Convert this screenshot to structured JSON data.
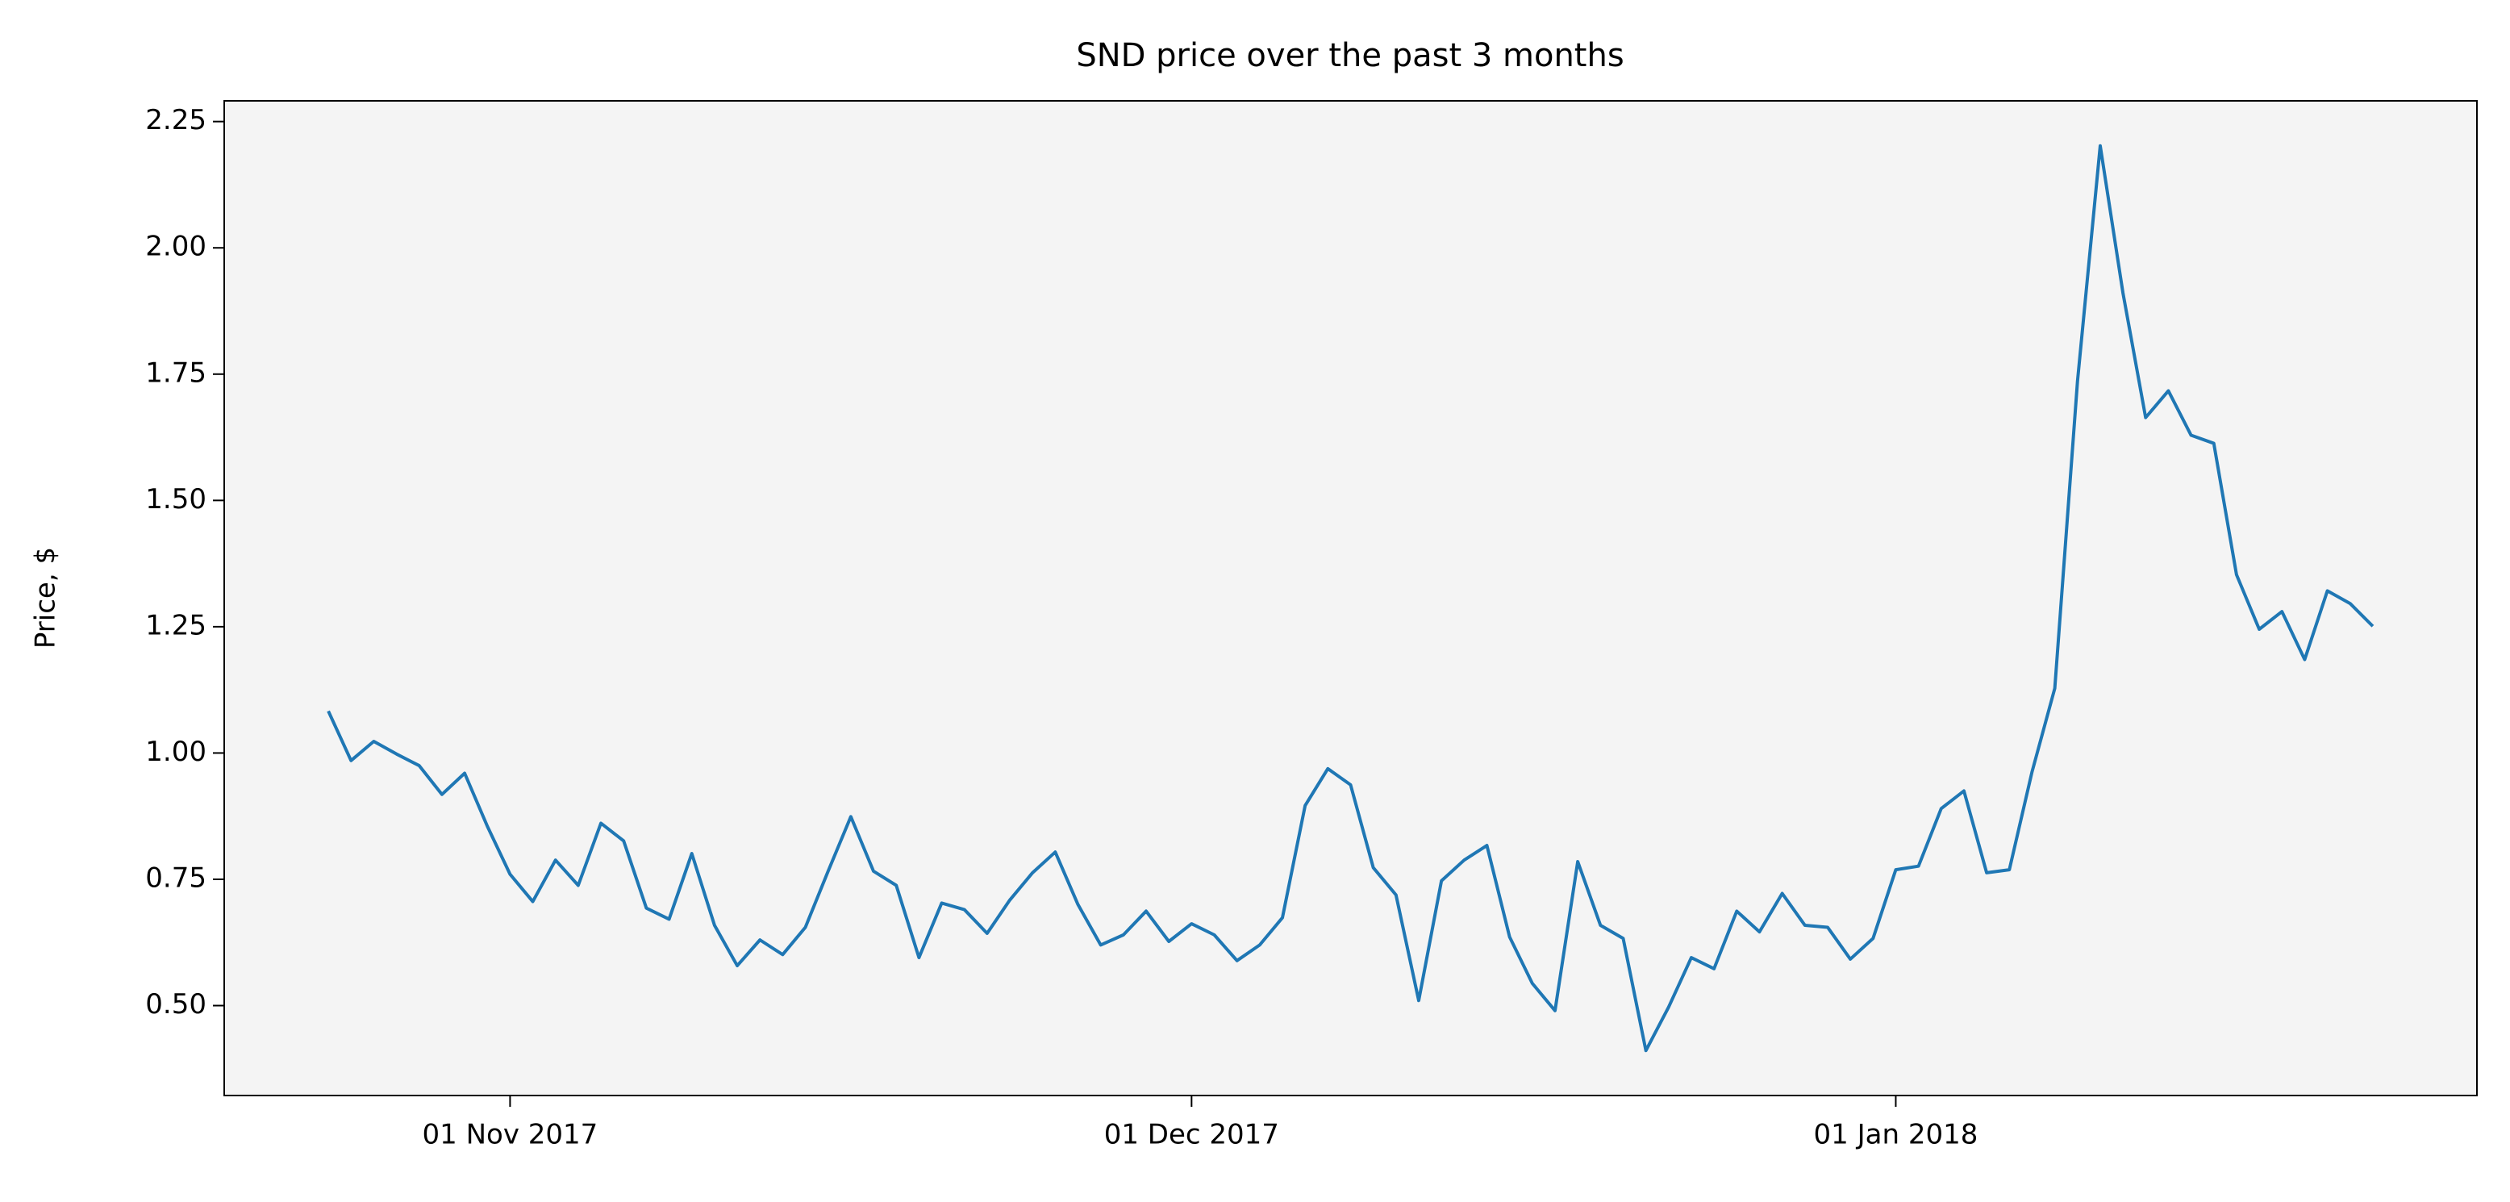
{
  "chart_data": {
    "type": "line",
    "title": "SND price over the past 3 months",
    "ylabel": "Price, $",
    "color": "#1f77b4",
    "background": "#f4f4f4",
    "x": [
      "2017-10-24",
      "2017-10-25",
      "2017-10-26",
      "2017-10-27",
      "2017-10-28",
      "2017-10-29",
      "2017-10-30",
      "2017-10-31",
      "2017-11-01",
      "2017-11-02",
      "2017-11-03",
      "2017-11-04",
      "2017-11-05",
      "2017-11-06",
      "2017-11-07",
      "2017-11-08",
      "2017-11-09",
      "2017-11-10",
      "2017-11-11",
      "2017-11-12",
      "2017-11-13",
      "2017-11-14",
      "2017-11-15",
      "2017-11-16",
      "2017-11-17",
      "2017-11-18",
      "2017-11-19",
      "2017-11-20",
      "2017-11-21",
      "2017-11-22",
      "2017-11-23",
      "2017-11-24",
      "2017-11-25",
      "2017-11-26",
      "2017-11-27",
      "2017-11-28",
      "2017-11-29",
      "2017-11-30",
      "2017-12-01",
      "2017-12-02",
      "2017-12-03",
      "2017-12-04",
      "2017-12-05",
      "2017-12-06",
      "2017-12-07",
      "2017-12-08",
      "2017-12-09",
      "2017-12-10",
      "2017-12-11",
      "2017-12-12",
      "2017-12-13",
      "2017-12-14",
      "2017-12-15",
      "2017-12-16",
      "2017-12-17",
      "2017-12-18",
      "2017-12-19",
      "2017-12-20",
      "2017-12-21",
      "2017-12-22",
      "2017-12-23",
      "2017-12-24",
      "2017-12-25",
      "2017-12-26",
      "2017-12-27",
      "2017-12-28",
      "2017-12-29",
      "2017-12-30",
      "2017-12-31",
      "2018-01-01",
      "2018-01-02",
      "2018-01-03",
      "2018-01-04",
      "2018-01-05",
      "2018-01-06",
      "2018-01-07",
      "2018-01-08",
      "2018-01-09",
      "2018-01-10",
      "2018-01-11",
      "2018-01-12",
      "2018-01-13",
      "2018-01-14",
      "2018-01-15",
      "2018-01-16",
      "2018-01-17",
      "2018-01-18",
      "2018-01-19",
      "2018-01-20",
      "2018-01-21",
      "2018-01-22"
    ],
    "values": [
      1.083,
      0.985,
      1.023,
      0.998,
      0.975,
      0.918,
      0.96,
      0.855,
      0.76,
      0.706,
      0.788,
      0.738,
      0.861,
      0.826,
      0.693,
      0.671,
      0.801,
      0.659,
      0.579,
      0.63,
      0.601,
      0.655,
      0.766,
      0.874,
      0.766,
      0.738,
      0.595,
      0.703,
      0.69,
      0.643,
      0.709,
      0.763,
      0.804,
      0.7,
      0.62,
      0.64,
      0.687,
      0.627,
      0.662,
      0.64,
      0.589,
      0.62,
      0.674,
      0.896,
      0.969,
      0.937,
      0.773,
      0.719,
      0.51,
      0.747,
      0.788,
      0.817,
      0.636,
      0.544,
      0.49,
      0.785,
      0.659,
      0.633,
      0.411,
      0.497,
      0.595,
      0.573,
      0.687,
      0.646,
      0.722,
      0.659,
      0.655,
      0.592,
      0.633,
      0.769,
      0.776,
      0.89,
      0.925,
      0.763,
      0.769,
      0.963,
      1.128,
      1.736,
      2.202,
      1.911,
      1.664,
      1.717,
      1.629,
      1.613,
      1.353,
      1.245,
      1.28,
      1.185,
      1.321,
      1.296,
      1.251
    ],
    "xlim": [
      "2017-10-19T10:00Z",
      "2018-01-26T14:00Z"
    ],
    "xticks": [
      {
        "value": "2017-11-01",
        "label": "01 Nov 2017"
      },
      {
        "value": "2017-12-01",
        "label": "01 Dec 2017"
      },
      {
        "value": "2018-01-01",
        "label": "01 Jan 2018"
      }
    ],
    "ylim": [
      0.322,
      2.291
    ],
    "yticks": [
      {
        "value": 0.5,
        "label": "0.50"
      },
      0.75,
      {
        "value": 1.0,
        "label": "1.00"
      },
      1.25,
      {
        "value": 1.5,
        "label": "1.50"
      },
      1.75,
      {
        "value": 2.0,
        "label": "2.00"
      },
      2.25
    ]
  }
}
